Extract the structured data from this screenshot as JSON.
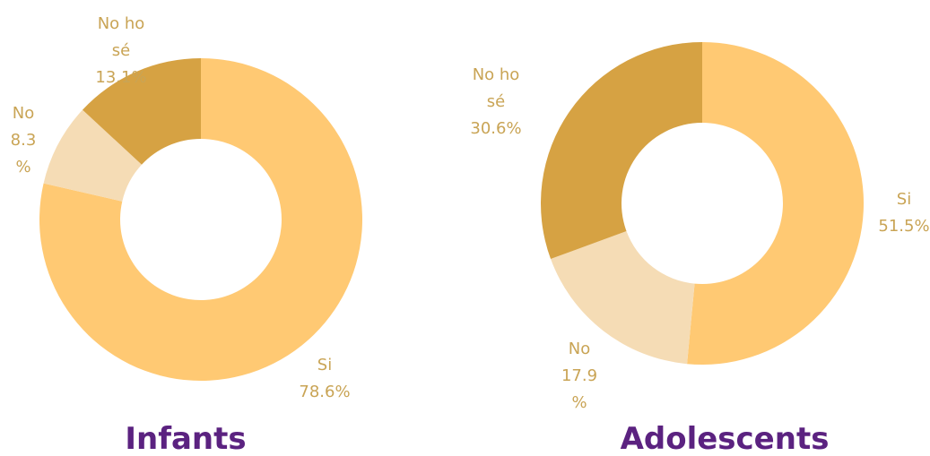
{
  "chart_data": [
    {
      "type": "pie",
      "title": "Infants",
      "categories": [
        "Si",
        "No",
        "No ho sé"
      ],
      "values": [
        78.6,
        8.3,
        13.1
      ],
      "value_labels": [
        "78.6%",
        "8.3 %",
        "13.1%"
      ],
      "colors": [
        "#FFC973",
        "#F5DCB5",
        "#D6A243"
      ]
    },
    {
      "type": "pie",
      "title": "Adolescents",
      "categories": [
        "Si",
        "No",
        "No ho sé"
      ],
      "values": [
        51.5,
        17.9,
        30.6
      ],
      "value_labels": [
        "51.5%",
        "17.9 %",
        "30.6%"
      ],
      "colors": [
        "#FFC973",
        "#F5DCB5",
        "#D6A243"
      ]
    }
  ]
}
